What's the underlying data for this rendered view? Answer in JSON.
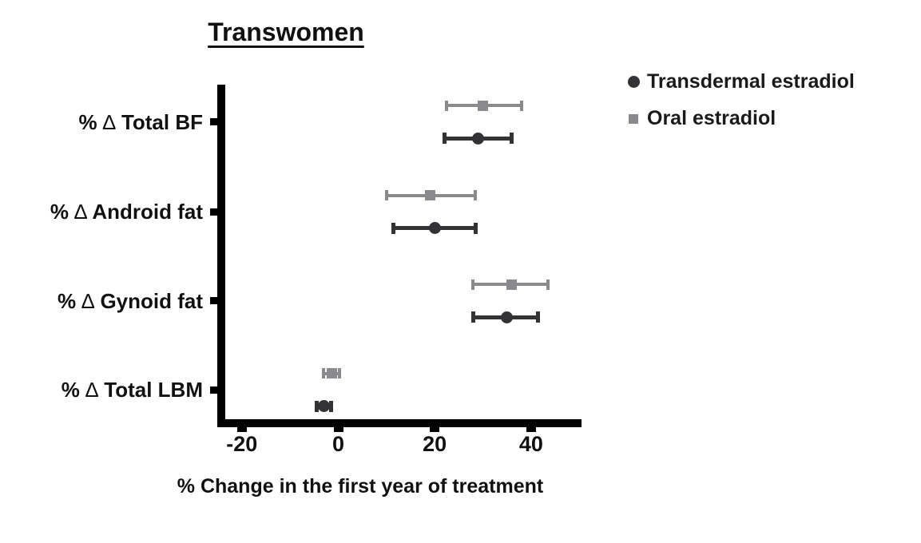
{
  "title": "Transwomen",
  "legend": {
    "items": [
      {
        "label": "Transdermal estradiol",
        "marker": "circle",
        "color": "#333336"
      },
      {
        "label": "Oral estradiol",
        "marker": "square",
        "color": "#8a8a8c"
      }
    ]
  },
  "chart_data": {
    "type": "scatter",
    "subtype": "horizontal-forest-plot-with-error-bars",
    "title": "Transwomen",
    "xlabel": "% Change in the first year of treatment",
    "ylabel": "",
    "xlim": [
      -24,
      50
    ],
    "xticks": [
      -20,
      0,
      20,
      40
    ],
    "grid": false,
    "legend_position": "top-right",
    "categories": [
      "% ∆ Total BF",
      "% ∆ Android fat",
      "% ∆ Gynoid fat",
      "% ∆ Total LBM"
    ],
    "series": [
      {
        "name": "Transdermal estradiol",
        "marker": "circle",
        "color": "#333336",
        "values": [
          29,
          20,
          35,
          -3
        ],
        "ci_low": [
          22,
          11.5,
          28,
          -4.5
        ],
        "ci_high": [
          36,
          28.5,
          41.5,
          -1.5
        ]
      },
      {
        "name": "Oral estradiol",
        "marker": "square",
        "color": "#8a8a8c",
        "values": [
          30,
          19,
          36,
          -1.3
        ],
        "ci_low": [
          22.5,
          10,
          28,
          -3
        ],
        "ci_high": [
          38,
          28.5,
          43.5,
          0.3
        ]
      }
    ]
  },
  "axis_color": "#000000"
}
